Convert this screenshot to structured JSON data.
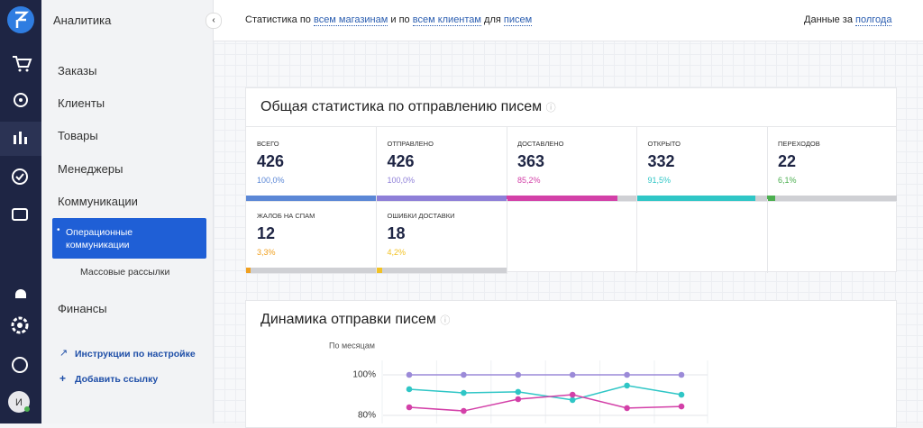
{
  "sidebar": {
    "section_title": "Аналитика",
    "menu": [
      "Заказы",
      "Клиенты",
      "Товары",
      "Менеджеры",
      "Коммуникации"
    ],
    "submenu": [
      "Операционные коммуникации",
      "Массовые рассылки"
    ],
    "menu_after": [
      "Финансы"
    ],
    "links": [
      "Инструкции по настройке",
      "Добавить ссылку"
    ],
    "avatar": "И"
  },
  "header": {
    "parts": [
      "Статистика по",
      "всем магазинам",
      "и по",
      "всем клиентам",
      "для",
      "писем"
    ],
    "period_label": "Данные за",
    "period": "полгода"
  },
  "stats_card": {
    "title": "Общая статистика по отправлению писем",
    "items": [
      {
        "label": "ВСЕГО",
        "value": 426,
        "percent": 100.0,
        "percent_label": "100,0%",
        "color": "#5b87d6"
      },
      {
        "label": "ОТПРАВЛЕНО",
        "value": 426,
        "percent": 100.0,
        "percent_label": "100,0%",
        "color": "#8e7fd8"
      },
      {
        "label": "ДОСТАВЛЕНО",
        "value": 363,
        "percent": 85.2,
        "percent_label": "85,2%",
        "color": "#d340a8"
      },
      {
        "label": "ОТКРЫТО",
        "value": 332,
        "percent": 91.5,
        "percent_label": "91,5%",
        "color": "#2fc6c6"
      },
      {
        "label": "ПЕРЕХОДОВ",
        "value": 22,
        "percent": 6.1,
        "percent_label": "6,1%",
        "color": "#4caf50"
      },
      {
        "label": "ЖАЛОБ НА СПАМ",
        "value": 12,
        "percent": 3.3,
        "percent_label": "3,3%",
        "color": "#f0a020"
      },
      {
        "label": "ОШИБКИ ДОСТАВКИ",
        "value": 18,
        "percent": 4.2,
        "percent_label": "4,2%",
        "color": "#f2c224"
      }
    ]
  },
  "chart_data": {
    "type": "line",
    "title": "Динамика отправки писем",
    "subtitle": "По месяцам",
    "ylim": [
      78,
      100
    ],
    "yticks": [
      {
        "value": 100,
        "label": "100%"
      },
      {
        "value": 80,
        "label": "80%"
      }
    ],
    "series": [
      {
        "color": "#9b8ad8",
        "values": [
          100,
          100,
          100,
          100,
          100,
          100
        ]
      },
      {
        "color": "#2fc6c6",
        "values": [
          92.9,
          91.1,
          91.6,
          87.6,
          94.7,
          90.2
        ]
      },
      {
        "color": "#d340a8",
        "values": [
          84,
          82.2,
          88,
          90.2,
          83.6,
          84.4
        ]
      }
    ]
  }
}
